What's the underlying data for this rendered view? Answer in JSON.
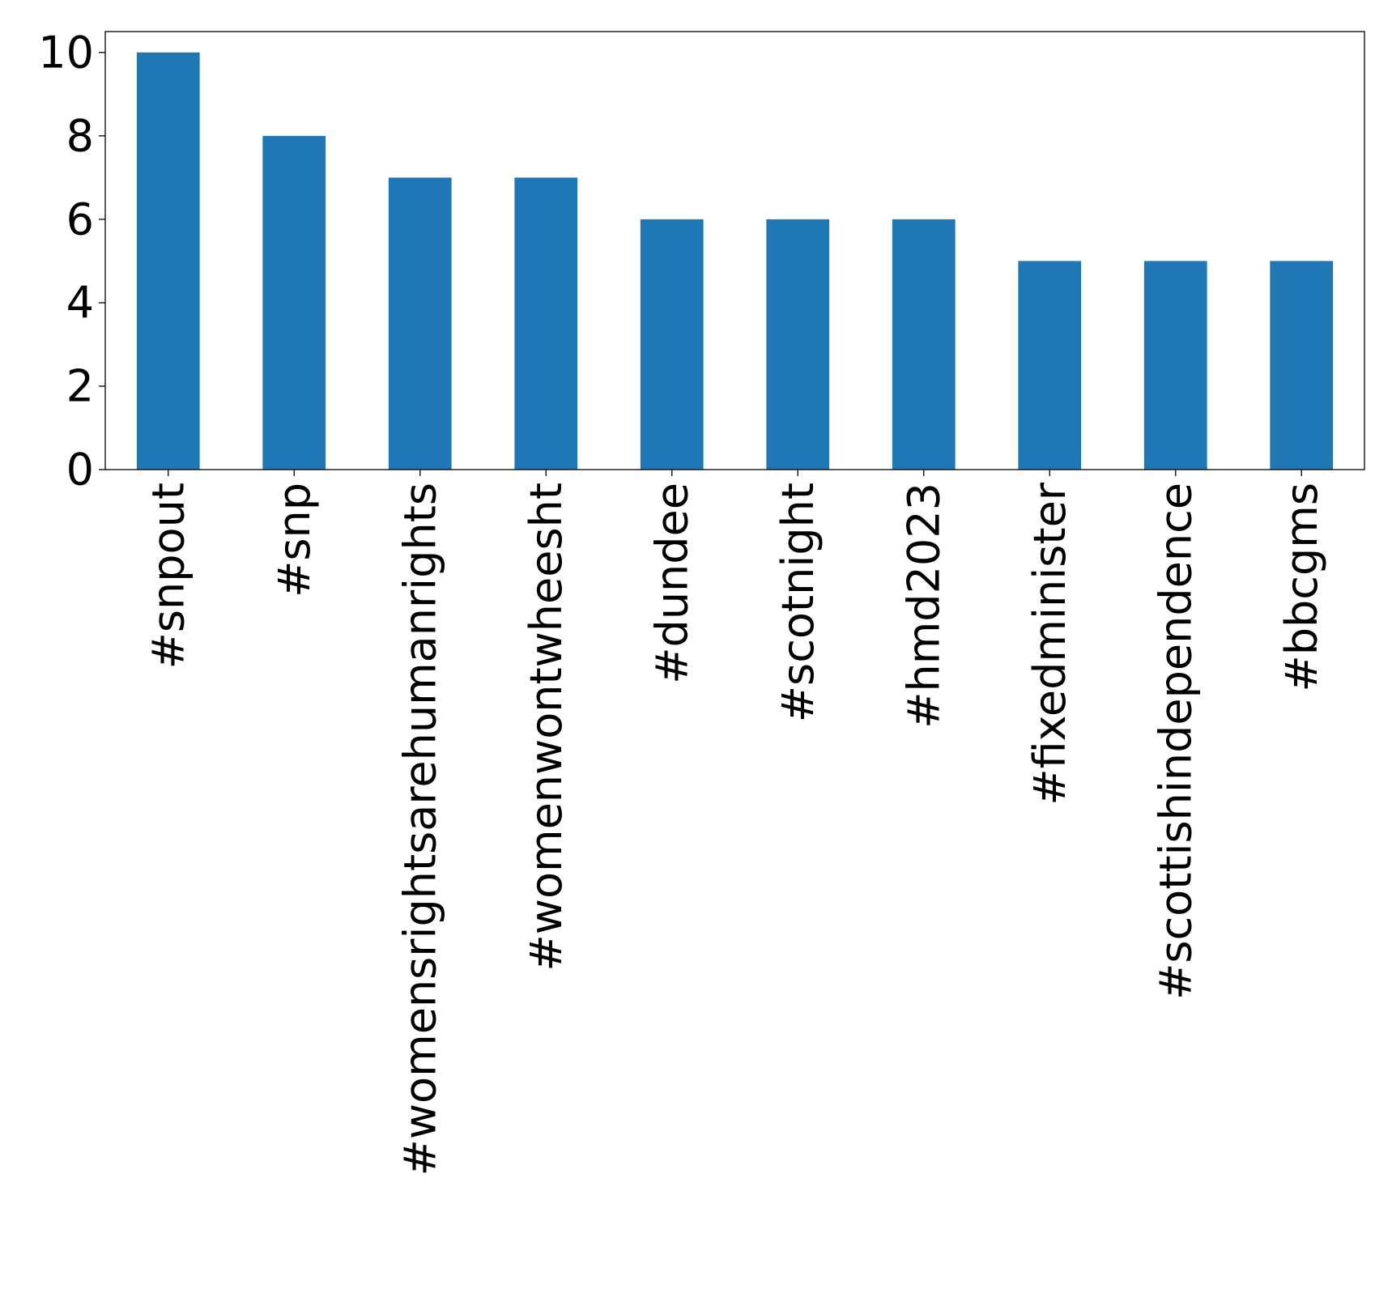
{
  "chart_data": {
    "type": "bar",
    "categories": [
      "#snpout",
      "#snp",
      "#womensrightsarehumanrights",
      "#womenwontwheesht",
      "#dundee",
      "#scotnight",
      "#hmd2023",
      "#fixedminister",
      "#scottishindependence",
      "#bbcgms"
    ],
    "values": [
      10,
      8,
      7,
      7,
      6,
      6,
      6,
      5,
      5,
      5
    ],
    "yticks": [
      0,
      2,
      4,
      6,
      8,
      10
    ],
    "ylim": [
      0,
      10.5
    ],
    "bar_color": "#1f77b4",
    "grid": false,
    "legend": "none"
  }
}
